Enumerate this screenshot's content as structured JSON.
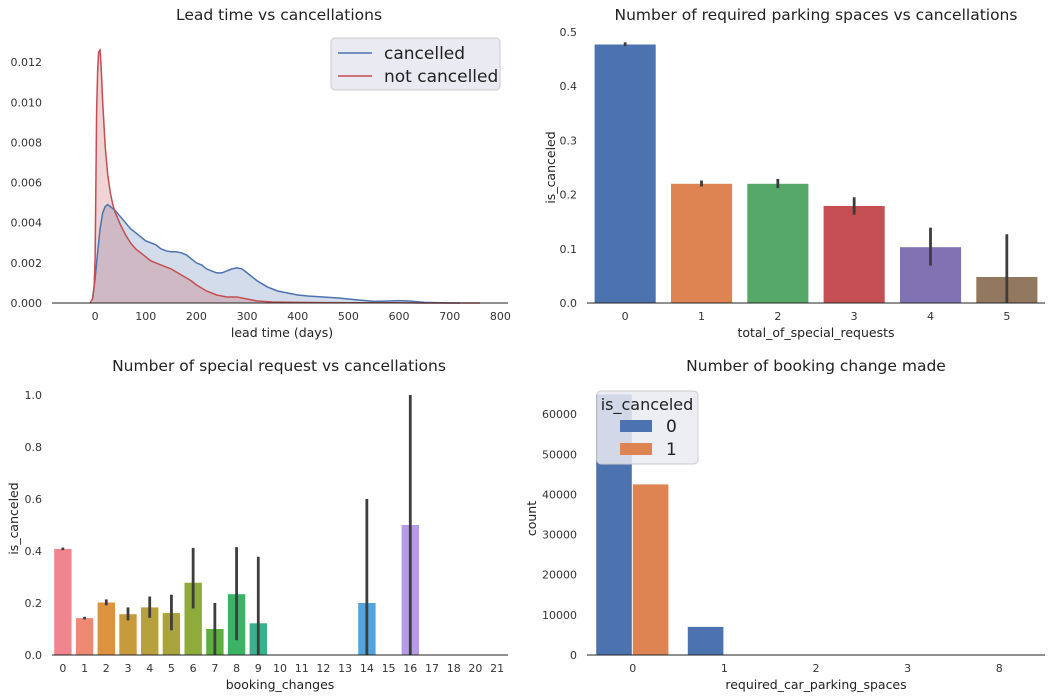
{
  "chart_data": [
    {
      "type": "area",
      "title": "Lead time vs cancellations",
      "xlabel": "lead time (days)",
      "ylabel": "",
      "xlim": [
        -85,
        815
      ],
      "ylim": [
        0,
        0.0135
      ],
      "xticks": [
        0,
        100,
        200,
        300,
        400,
        500,
        600,
        700,
        800
      ],
      "yticks": [
        0.0,
        0.002,
        0.004,
        0.006,
        0.008,
        0.01,
        0.012
      ],
      "ytick_labels": [
        "0.000",
        "0.002",
        "0.004",
        "0.006",
        "0.008",
        "0.010",
        "0.012"
      ],
      "legend": "top-right",
      "series": [
        {
          "name": "cancelled",
          "color": "#4c72b0",
          "x": [
            -5,
            0,
            5,
            10,
            15,
            20,
            25,
            30,
            40,
            50,
            60,
            70,
            80,
            90,
            100,
            110,
            120,
            130,
            140,
            150,
            160,
            170,
            180,
            190,
            200,
            210,
            220,
            230,
            240,
            250,
            260,
            270,
            280,
            290,
            300,
            320,
            340,
            360,
            380,
            400,
            420,
            450,
            480,
            500,
            520,
            550,
            580,
            600,
            620,
            650,
            680,
            700,
            720
          ],
          "y": [
            0.0002,
            0.0012,
            0.0025,
            0.0037,
            0.0045,
            0.0048,
            0.0049,
            0.0048,
            0.0046,
            0.0043,
            0.004,
            0.0037,
            0.0035,
            0.0033,
            0.0031,
            0.003,
            0.0029,
            0.0027,
            0.0026,
            0.00255,
            0.00255,
            0.0025,
            0.0024,
            0.0022,
            0.002,
            0.0019,
            0.0017,
            0.0016,
            0.0015,
            0.0015,
            0.0016,
            0.0017,
            0.00175,
            0.0017,
            0.0015,
            0.0011,
            0.0008,
            0.0006,
            0.0005,
            0.0004,
            0.00035,
            0.0003,
            0.00025,
            0.0002,
            0.00015,
            8e-05,
            0.0001,
            0.00012,
            0.0001,
            3e-05,
            1e-05,
            0.0,
            0.0
          ]
        },
        {
          "name": "not cancelled",
          "color": "#c44e52",
          "x": [
            -10,
            -5,
            -2,
            0,
            1,
            2,
            3,
            5,
            7,
            10,
            12,
            15,
            20,
            25,
            30,
            35,
            40,
            50,
            60,
            70,
            80,
            90,
            100,
            110,
            120,
            130,
            140,
            150,
            160,
            170,
            180,
            190,
            200,
            220,
            240,
            260,
            280,
            300,
            320,
            350,
            400,
            450,
            500,
            550,
            600,
            650,
            700,
            760
          ],
          "y": [
            0.0,
            0.0002,
            0.0008,
            0.0022,
            0.0045,
            0.007,
            0.0095,
            0.0115,
            0.0125,
            0.0126,
            0.0118,
            0.01,
            0.0078,
            0.0064,
            0.0055,
            0.0049,
            0.0045,
            0.0039,
            0.0034,
            0.003,
            0.0027,
            0.0025,
            0.0023,
            0.0021,
            0.002,
            0.0019,
            0.0018,
            0.0017,
            0.00155,
            0.0014,
            0.00125,
            0.0011,
            0.0009,
            0.0006,
            0.0004,
            0.0003,
            0.0003,
            0.0002,
            0.0001,
            5e-05,
            3e-05,
            2e-05,
            1e-05,
            1e-05,
            1e-05,
            0.0,
            0.0,
            0.0
          ]
        }
      ]
    },
    {
      "type": "bar",
      "title": "Number of required parking spaces vs cancellations",
      "xlabel": "total_of_special_requests",
      "ylabel": "is_canceled",
      "ylim": [
        0,
        0.5
      ],
      "yticks": [
        0.0,
        0.1,
        0.2,
        0.3,
        0.4,
        0.5
      ],
      "ytick_labels": [
        "0.0",
        "0.1",
        "0.2",
        "0.3",
        "0.4",
        "0.5"
      ],
      "categories": [
        "0",
        "1",
        "2",
        "3",
        "4",
        "5"
      ],
      "values": [
        0.477,
        0.22,
        0.22,
        0.179,
        0.103,
        0.048
      ],
      "ci_low": [
        0.474,
        0.215,
        0.212,
        0.163,
        0.069,
        0.0
      ],
      "ci_high": [
        0.481,
        0.226,
        0.229,
        0.195,
        0.139,
        0.127
      ],
      "colors": [
        "#4c72b0",
        "#dd8452",
        "#55a868",
        "#c44e52",
        "#8172b3",
        "#937860"
      ]
    },
    {
      "type": "bar",
      "title": "Number of special request vs cancellations",
      "xlabel": "booking_changes",
      "ylabel": "is_canceled",
      "ylim": [
        0,
        1.05
      ],
      "yticks": [
        0.0,
        0.2,
        0.4,
        0.6,
        0.8,
        1.0
      ],
      "ytick_labels": [
        "0.0",
        "0.2",
        "0.4",
        "0.6",
        "0.8",
        "1.0"
      ],
      "categories": [
        "0",
        "1",
        "2",
        "3",
        "4",
        "5",
        "6",
        "7",
        "8",
        "9",
        "10",
        "11",
        "12",
        "13",
        "14",
        "15",
        "16",
        "17",
        "18",
        "20",
        "21"
      ],
      "values": [
        0.408,
        0.142,
        0.202,
        0.157,
        0.183,
        0.161,
        0.278,
        0.1,
        0.234,
        0.122,
        0,
        0,
        0,
        0,
        0.2,
        0,
        0.5,
        0,
        0,
        0,
        0
      ],
      "ci_low": [
        0.403,
        0.137,
        0.191,
        0.133,
        0.143,
        0.095,
        0.179,
        0.0,
        0.057,
        0.0,
        0,
        0,
        0,
        0,
        0.0,
        0,
        0.0,
        0,
        0,
        0,
        0
      ],
      "ci_high": [
        0.413,
        0.147,
        0.214,
        0.183,
        0.225,
        0.232,
        0.412,
        0.2,
        0.415,
        0.378,
        0,
        0,
        0,
        0,
        0.6,
        0,
        1.0,
        0,
        0,
        0,
        0
      ],
      "colors": [
        "#f0858f",
        "#ee8a74",
        "#dd9240",
        "#c79b3c",
        "#b7a13c",
        "#a9a43c",
        "#8eab3c",
        "#5db03e",
        "#3cb265",
        "#3cb08c",
        "#3eae9d",
        "#3daeab",
        "#3fafb9",
        "#42adc6",
        "#52a4df",
        "#7fa0e8",
        "#b49ae7",
        "#d294e2",
        "#ea8bd8",
        "#f388c3",
        "#f389ad"
      ]
    },
    {
      "type": "bar",
      "title": "Number of booking change made",
      "xlabel": "required_car_parking_spaces",
      "ylabel": "count",
      "ylim": [
        0,
        68000
      ],
      "yticks": [
        0,
        10000,
        20000,
        30000,
        40000,
        50000,
        60000
      ],
      "ytick_labels": [
        "0",
        "10000",
        "20000",
        "30000",
        "40000",
        "50000",
        "60000"
      ],
      "categories": [
        "0",
        "1",
        "2",
        "3",
        "8"
      ],
      "legend": "top-left",
      "legend_title": "is_canceled",
      "series": [
        {
          "name": "0",
          "color": "#4c72b0",
          "values": [
            64900,
            7000,
            20,
            2,
            1
          ]
        },
        {
          "name": "1",
          "color": "#dd8452",
          "values": [
            42500,
            0,
            0,
            0,
            0
          ]
        }
      ]
    }
  ]
}
